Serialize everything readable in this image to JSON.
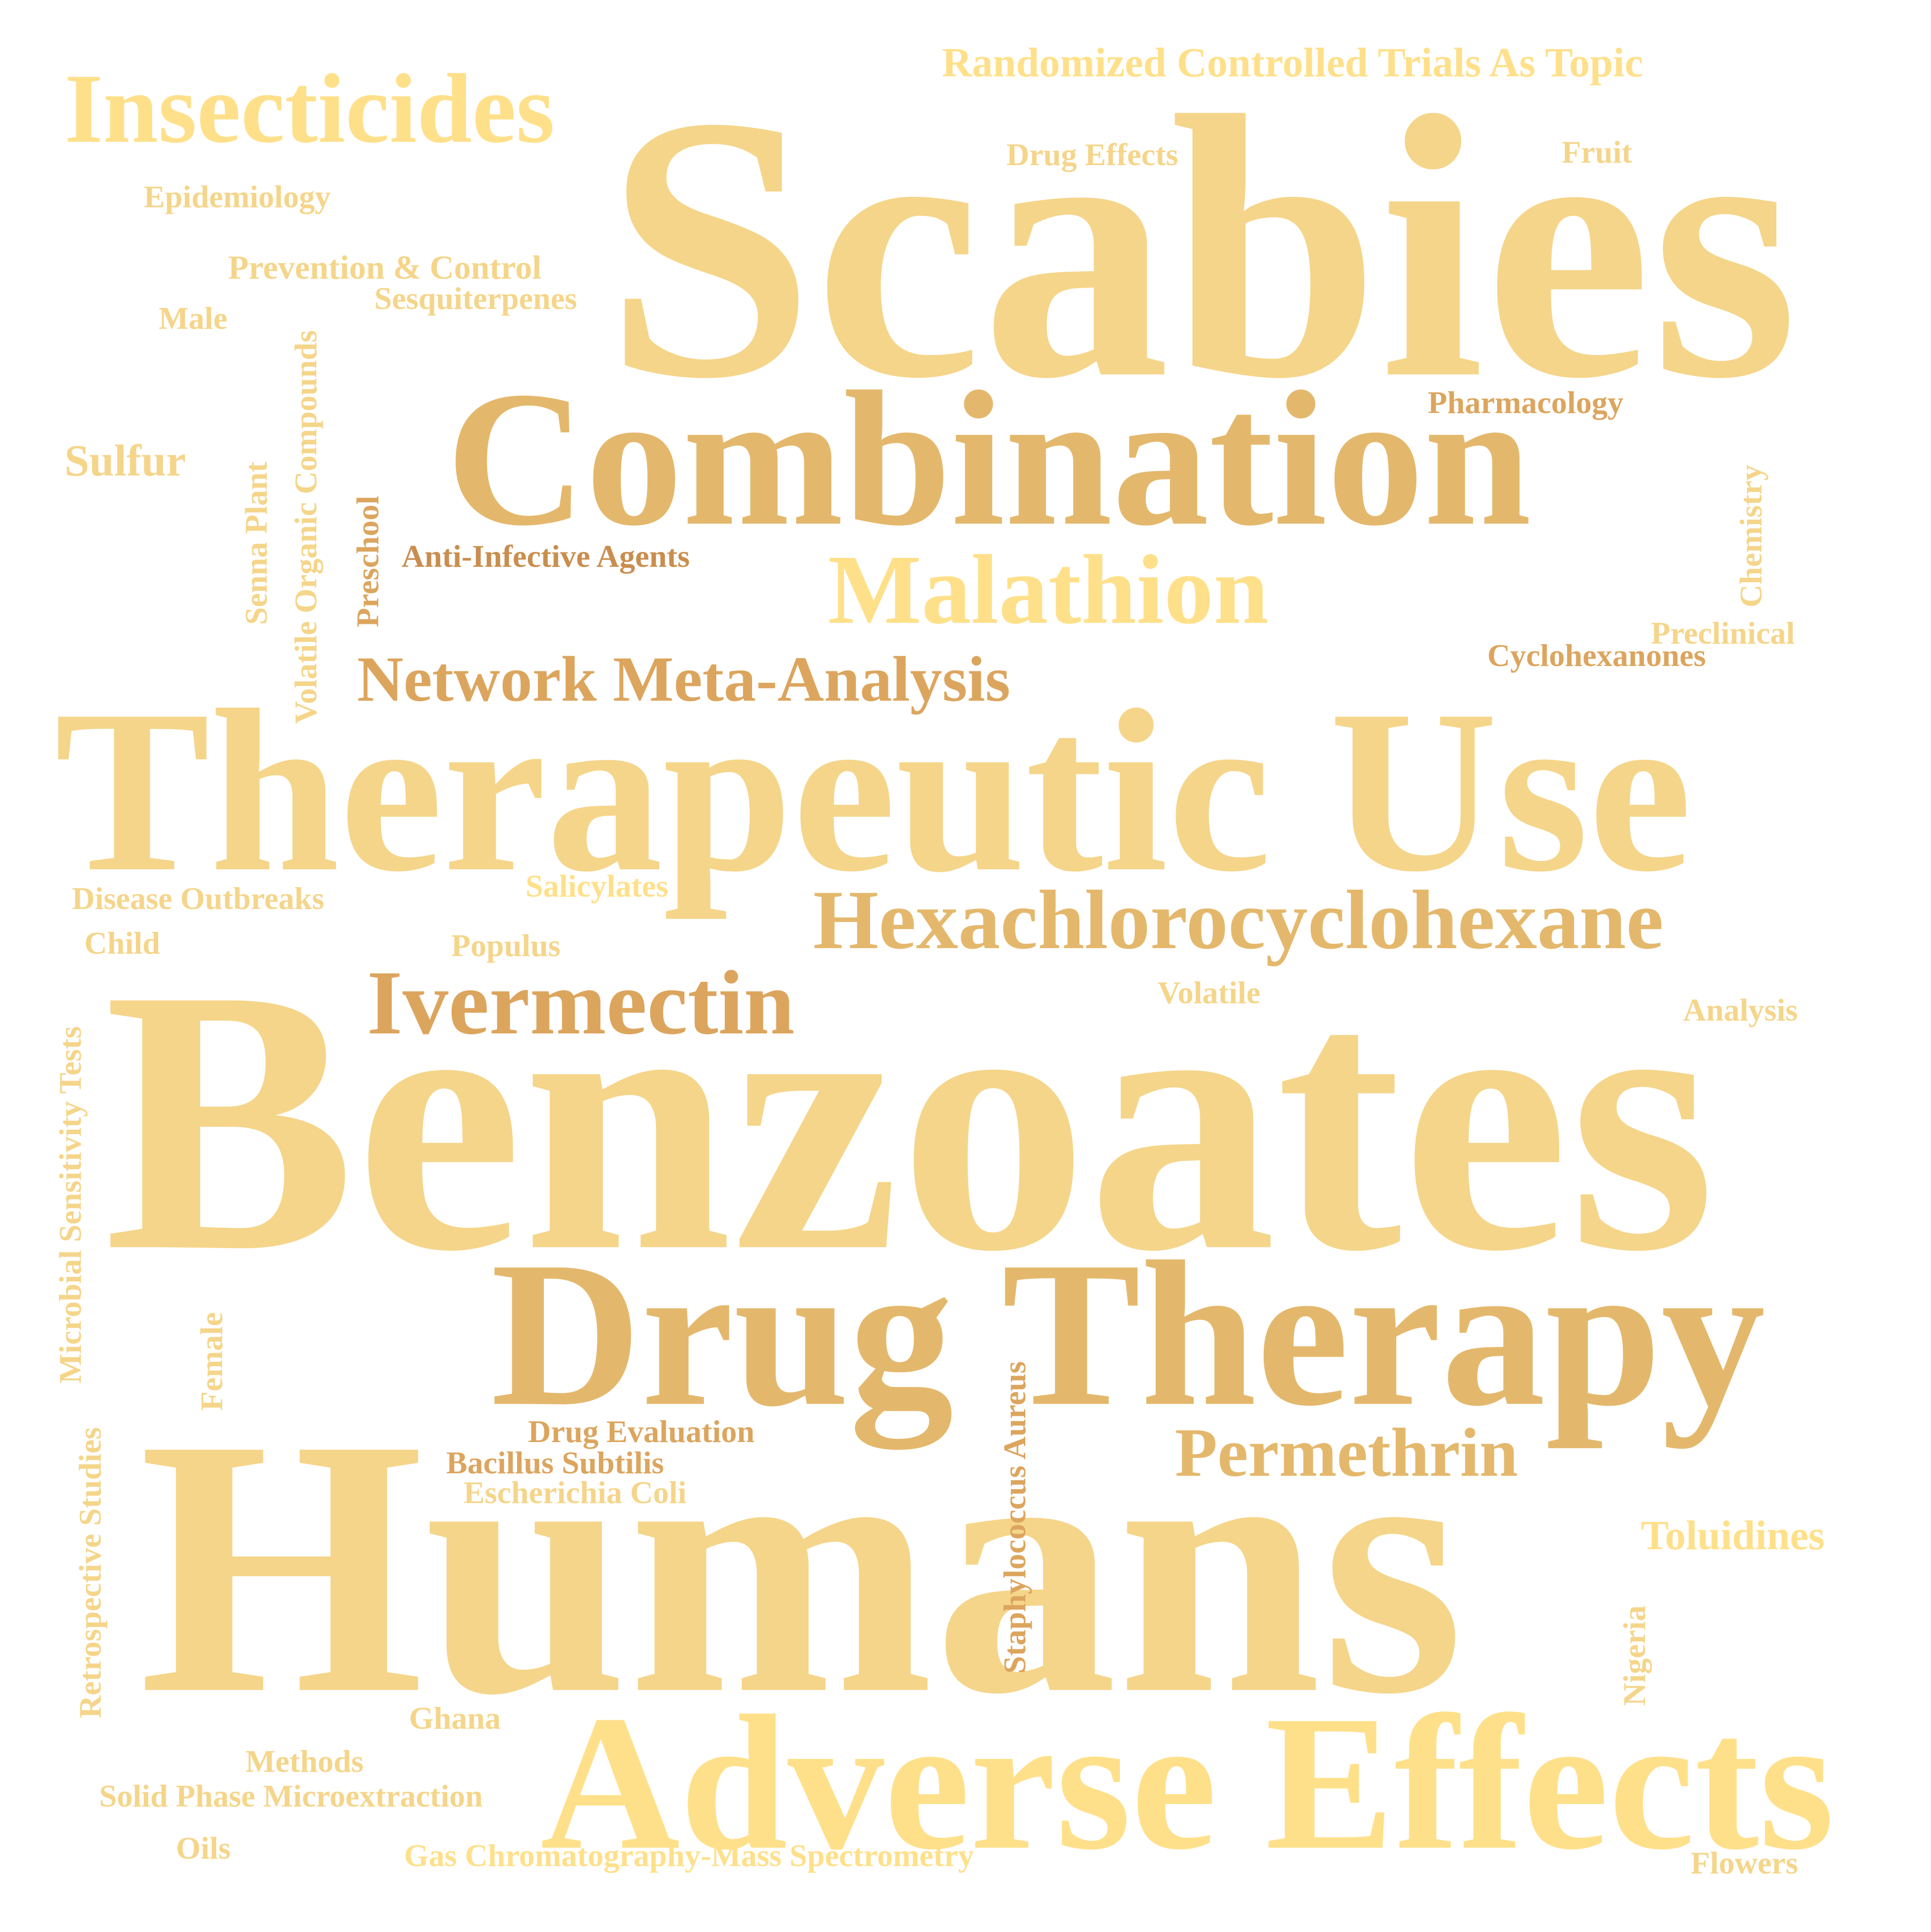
{
  "words": {
    "scabies": "Scabies",
    "combination": "Combination",
    "therapeutic_use": "Therapeutic Use",
    "benzoates": "Benzoates",
    "drug_therapy": "Drug Therapy",
    "humans": "Humans",
    "adverse_effects": "Adverse Effects",
    "insecticides": "Insecticides",
    "malathion": "Malathion",
    "network_meta_analysis": "Network Meta-Analysis",
    "hexachlorocyclohexane": "Hexachlorocyclohexane",
    "ivermectin": "Ivermectin",
    "permethrin": "Permethrin",
    "randomized_controlled_trials": "Randomized Controlled Trials As Topic",
    "drug_effects": "Drug Effects",
    "fruit": "Fruit",
    "epidemiology": "Epidemiology",
    "prevention_control": "Prevention & Control",
    "sesquiterpenes": "Sesquiterpenes",
    "male": "Male",
    "pharmacology": "Pharmacology",
    "sulfur": "Sulfur",
    "anti_infective_agents": "Anti-Infective Agents",
    "preclinical": "Preclinical",
    "cyclohexanones": "Cyclohexanones",
    "disease_outbreaks": "Disease Outbreaks",
    "salicylates": "Salicylates",
    "child": "Child",
    "populus": "Populus",
    "volatile": "Volatile",
    "analysis": "Analysis",
    "drug_evaluation": "Drug Evaluation",
    "bacillus_subtilis": "Bacillus Subtilis",
    "escherichia_coli": "Escherichia Coli",
    "toluidines": "Toluidines",
    "ghana": "Ghana",
    "methods": "Methods",
    "solid_phase_microextraction": "Solid Phase Microextraction",
    "oils": "Oils",
    "gc_ms": "Gas Chromatography-Mass Spectrometry",
    "flowers": "Flowers",
    "volatile_organic_compounds": "Volatile Organic Compounds",
    "senna_plant": "Senna Plant",
    "preschool": "Preschool",
    "chemistry": "Chemistry",
    "microbial_sensitivity_tests": "Microbial Sensitivity Tests",
    "female": "Female",
    "retrospective_studies": "Retrospective Studies",
    "staphylococcus_aureus": "Staphylococcus Aureus",
    "nigeria": "Nigeria"
  },
  "palette": {
    "light_gold": "#f5d58a",
    "pale_yellow": "#ffe08a",
    "tan": "#e4b86c",
    "dark_tan": "#dca55e",
    "brown": "#c98e4f"
  }
}
